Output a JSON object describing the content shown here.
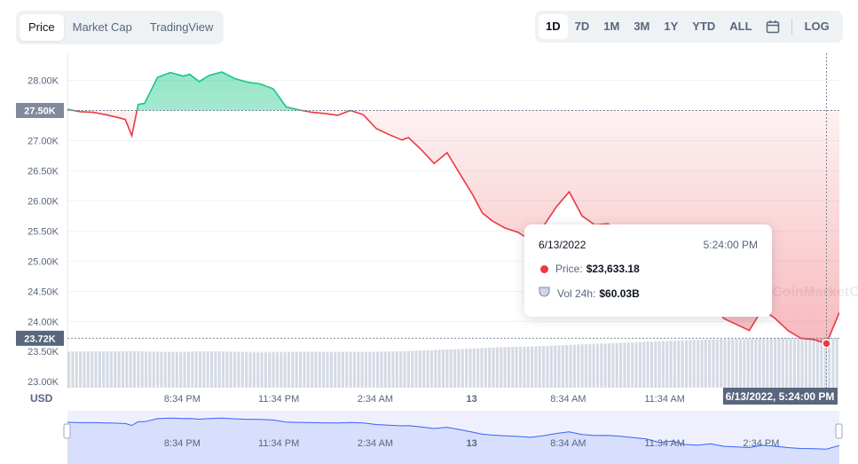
{
  "view_tabs": [
    {
      "label": "Price",
      "active": true
    },
    {
      "label": "Market Cap",
      "active": false
    },
    {
      "label": "TradingView",
      "active": false
    }
  ],
  "ranges": [
    {
      "label": "1D",
      "active": true
    },
    {
      "label": "7D",
      "active": false
    },
    {
      "label": "1M",
      "active": false
    },
    {
      "label": "3M",
      "active": false
    },
    {
      "label": "1Y",
      "active": false
    },
    {
      "label": "YTD",
      "active": false
    },
    {
      "label": "ALL",
      "active": false
    }
  ],
  "log_label": "LOG",
  "currency_label": "USD",
  "watermark_text": "CoinMarketCap",
  "colors": {
    "up": "#16c784",
    "down": "#ea3943",
    "volume": "#cfd6e4",
    "accent": "#3861fb"
  },
  "tooltip": {
    "date": "6/13/2022",
    "time": "5:24:00 PM",
    "price_label": "Price:",
    "price_value": "$23,633.18",
    "vol_label": "Vol 24h:",
    "vol_value": "$60.03B"
  },
  "crosshair": {
    "y_label": "23.72K",
    "x_label": "6/13/2022, 5:24:00 PM",
    "ref_label": "27.50K",
    "ref_value": 27500,
    "cursor_value": 23720
  },
  "chart_data": {
    "type": "line",
    "title": "",
    "xlabel": "",
    "ylabel": "USD",
    "ylim": [
      22900,
      28450
    ],
    "y_ticks": [
      "23.00K",
      "23.50K",
      "24.00K",
      "24.50K",
      "25.00K",
      "25.50K",
      "26.00K",
      "26.50K",
      "27.00K",
      "27.50K",
      "28.00K"
    ],
    "y_tick_values": [
      23000,
      23500,
      24000,
      24500,
      25000,
      25500,
      26000,
      26500,
      27000,
      27500,
      28000
    ],
    "x_ticks": [
      "8:34 PM",
      "11:34 PM",
      "2:34 AM",
      "13",
      "8:34 AM",
      "11:34 AM",
      "2:34 PM"
    ],
    "x_tick_hours": [
      3.57,
      6.57,
      9.57,
      12.57,
      15.57,
      18.57,
      21.57
    ],
    "x_hours": [
      0,
      0.4,
      0.8,
      1.2,
      1.6,
      1.8,
      2.0,
      2.2,
      2.4,
      2.8,
      3.2,
      3.6,
      3.8,
      4.1,
      4.4,
      4.8,
      5.2,
      5.6,
      6.0,
      6.4,
      6.8,
      7.2,
      7.6,
      8.0,
      8.4,
      8.8,
      9.2,
      9.6,
      10.0,
      10.4,
      10.6,
      11.0,
      11.4,
      11.8,
      12.2,
      12.6,
      12.9,
      13.2,
      13.6,
      14.0,
      14.4,
      14.8,
      15.2,
      15.6,
      16.0,
      16.4,
      16.8,
      17.2,
      17.6,
      18.0,
      18.4,
      18.8,
      19.2,
      19.6,
      20.0,
      20.4,
      20.8,
      21.2,
      21.6,
      22.0,
      22.4,
      22.8,
      23.2,
      23.6,
      24.0
    ],
    "prices": [
      27520,
      27480,
      27470,
      27430,
      27380,
      27350,
      27080,
      27600,
      27620,
      28050,
      28130,
      28070,
      28100,
      27980,
      28080,
      28140,
      28030,
      27970,
      27940,
      27860,
      27560,
      27510,
      27470,
      27450,
      27420,
      27500,
      27430,
      27200,
      27100,
      27010,
      27050,
      26850,
      26620,
      26800,
      26450,
      26100,
      25800,
      25670,
      25550,
      25480,
      25350,
      25580,
      25900,
      26150,
      25750,
      25600,
      25620,
      25500,
      25300,
      25100,
      24600,
      24800,
      24300,
      24200,
      24400,
      24050,
      23950,
      23850,
      24200,
      24050,
      23850,
      23720,
      23700,
      23633,
      24150
    ],
    "volume_billions": [
      54.5,
      54.5,
      54.6,
      54.6,
      54.6,
      54.7,
      54.8,
      54.7,
      54.5,
      54.4,
      54.3,
      54.3,
      54.4,
      54.6,
      54.6,
      54.5,
      54.4,
      54.3,
      54.2,
      54.3,
      54.3,
      54.4,
      54.4,
      54.3,
      54.3,
      54.4,
      54.3,
      54.4,
      54.5,
      54.6,
      54.8,
      55.0,
      55.2,
      55.4,
      55.6,
      55.8,
      56.0,
      56.2,
      56.4,
      56.5,
      56.6,
      56.8,
      57.0,
      57.2,
      57.5,
      57.7,
      57.9,
      58.1,
      58.3,
      58.5,
      58.7,
      58.9,
      59.1,
      59.3,
      59.5,
      59.6,
      59.7,
      59.8,
      59.9,
      60.0,
      60.0,
      60.0,
      60.03,
      60.03,
      60.1
    ],
    "navigator_x_ticks": [
      "8:34 PM",
      "11:34 PM",
      "2:34 AM",
      "13",
      "8:34 AM",
      "11:34 AM",
      "2:34 PM"
    ],
    "grid": true,
    "legend": "none"
  }
}
